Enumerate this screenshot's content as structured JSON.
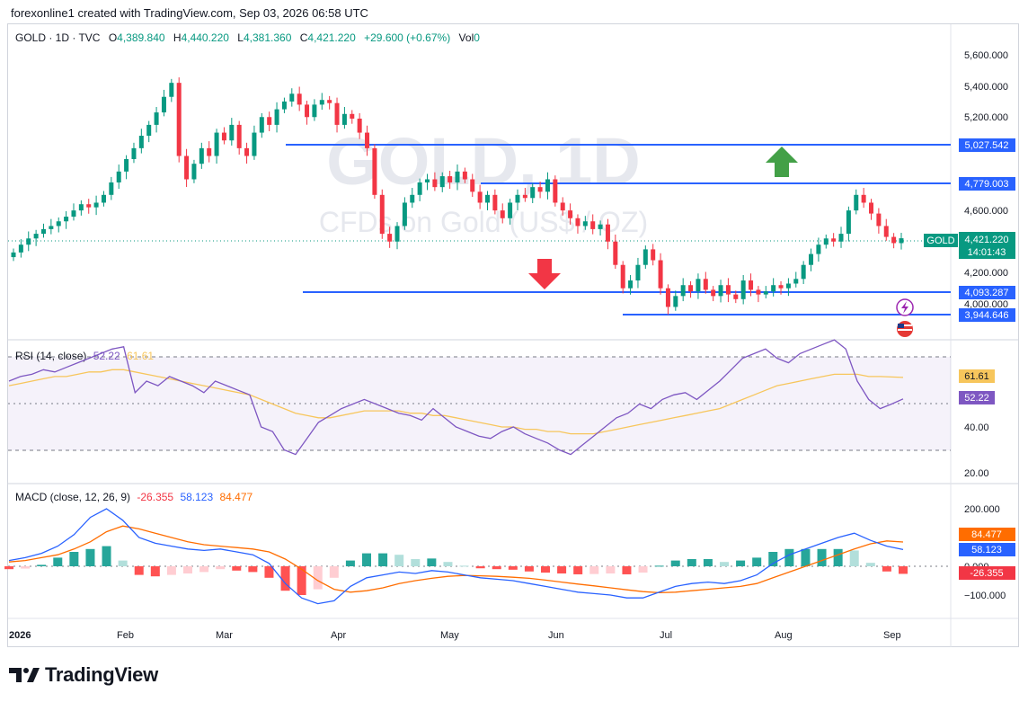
{
  "header": {
    "attribution": "forexonline1 created with TradingView.com, Sep 03, 2026 06:58 UTC"
  },
  "footer": {
    "brand": "TradingView"
  },
  "legend": {
    "symbol": "GOLD · 1D · TVC",
    "o_label": "O",
    "o": "4,389.840",
    "h_label": "H",
    "h": "4,440.220",
    "l_label": "L",
    "l": "4,381.360",
    "c_label": "C",
    "c": "4,421.220",
    "change": "+29.600 (+0.67%)",
    "vol_label": "Vol",
    "vol": "0"
  },
  "watermark": {
    "line1": "GOLD, 1D",
    "line2": "CFDs on Gold (US$ / OZ)"
  },
  "price_axis": {
    "ticks": [
      "5,600.000",
      "5,400.000",
      "5,200.000",
      "4,600.000",
      "4,200.000",
      "4,000.000"
    ],
    "symbol_tag": "GOLD",
    "last_price": "4,421.220",
    "countdown": "14:01:43"
  },
  "levels": [
    {
      "label": "5,027.542",
      "value": 5027.542
    },
    {
      "label": "4,779.003",
      "value": 4779.003
    },
    {
      "label": "4,093.287",
      "value": 4093.287
    },
    {
      "label": "3,944.646",
      "value": 3944.646
    }
  ],
  "rsi": {
    "title": "RSI (14, close)",
    "rsi_value": "52.22",
    "ma_value": "61.61",
    "ticks": [
      "40.00",
      "20.00"
    ]
  },
  "macd": {
    "title": "MACD (close, 12, 26, 9)",
    "hist_value": "-26.355",
    "macd_value": "58.123",
    "signal_value": "84.477",
    "ticks": [
      "200.000",
      "0.000",
      "−100.000"
    ]
  },
  "time_axis": [
    "2026",
    "Feb",
    "Mar",
    "Apr",
    "May",
    "Jun",
    "Jul",
    "Aug",
    "Sep"
  ],
  "colors": {
    "up": "#089981",
    "down": "#f23645",
    "level": "#2962ff",
    "rsi": "#7e57c2",
    "rsi_ma": "#f7c65c",
    "macd": "#2962ff",
    "signal": "#ff6d00"
  },
  "icons": {
    "arrow_up": "green-up-arrow-icon",
    "arrow_down": "red-down-arrow-icon",
    "flash": "lightning-icon",
    "flag": "us-flag-icon"
  },
  "chart_data": [
    {
      "type": "candlestick",
      "title": "GOLD, 1D",
      "subtitle": "CFDs on Gold (US$ / OZ)",
      "x_range": [
        "2026-01-01",
        "2026-09-03"
      ],
      "ylim": [
        3850,
        5650
      ],
      "closes": [
        4330,
        4380,
        4420,
        4450,
        4480,
        4500,
        4530,
        4560,
        4600,
        4640,
        4620,
        4650,
        4700,
        4780,
        4850,
        4930,
        5000,
        5080,
        5150,
        5230,
        5330,
        5420,
        4950,
        4800,
        4900,
        5000,
        4950,
        5100,
        5050,
        5150,
        5000,
        4950,
        5100,
        5200,
        5150,
        5250,
        5300,
        5350,
        5280,
        5200,
        5280,
        5310,
        5290,
        5150,
        5220,
        5190,
        5100,
        5000,
        4700,
        4450,
        4400,
        4500,
        4650,
        4700,
        4780,
        4800,
        4750,
        4820,
        4780,
        4850,
        4800,
        4720,
        4650,
        4700,
        4600,
        4550,
        4650,
        4700,
        4680,
        4750,
        4720,
        4800,
        4650,
        4600,
        4550,
        4500,
        4530,
        4480,
        4510,
        4400,
        4250,
        4100,
        4150,
        4250,
        4350,
        4280,
        4100,
        3980,
        4050,
        4120,
        4080,
        4160,
        4090,
        4050,
        4120,
        4060,
        4030,
        4150,
        4090,
        4060,
        4080,
        4120,
        4100,
        4130,
        4160,
        4250,
        4320,
        4380,
        4420,
        4400,
        4450,
        4600,
        4700,
        4650,
        4580,
        4500,
        4430,
        4390,
        4421.22
      ]
    },
    {
      "type": "line",
      "title": "RSI (14, close)",
      "ylim": [
        20,
        80
      ],
      "ticks": [
        40,
        20
      ],
      "series": [
        {
          "name": "RSI",
          "values": [
            60,
            62,
            63,
            65,
            64,
            66,
            68,
            70,
            72,
            74,
            75,
            55,
            60,
            58,
            62,
            60,
            58,
            55,
            60,
            58,
            56,
            54,
            40,
            38,
            30,
            28,
            35,
            42,
            45,
            48,
            50,
            52,
            50,
            48,
            46,
            45,
            43,
            48,
            44,
            40,
            38,
            36,
            35,
            38,
            40,
            37,
            35,
            33,
            30,
            28,
            32,
            36,
            40,
            44,
            46,
            50,
            48,
            52,
            54,
            55,
            52,
            56,
            60,
            65,
            70,
            72,
            74,
            70,
            68,
            72,
            74,
            76,
            78,
            74,
            60,
            52,
            48,
            50,
            52.22
          ],
          "latest": 52.22
        },
        {
          "name": "RSI-based MA",
          "values": [
            58,
            59,
            60,
            61,
            62,
            62,
            63,
            64,
            64,
            65,
            65,
            64,
            63,
            62,
            61,
            60,
            59,
            58,
            57,
            56,
            55,
            54,
            52,
            50,
            48,
            46,
            45,
            44,
            44,
            45,
            46,
            47,
            47,
            47,
            47,
            46,
            46,
            45,
            45,
            44,
            43,
            42,
            41,
            40,
            40,
            39,
            39,
            38,
            38,
            37,
            37,
            37,
            38,
            39,
            40,
            41,
            42,
            43,
            44,
            45,
            46,
            47,
            48,
            50,
            52,
            54,
            56,
            58,
            59,
            60,
            61,
            62,
            63,
            63,
            63,
            62,
            62,
            61.8,
            61.61
          ],
          "latest": 61.61
        }
      ]
    },
    {
      "type": "line",
      "title": "MACD (close, 12, 26, 9)",
      "ylim": [
        -160,
        260
      ],
      "ticks": [
        200,
        0,
        -100
      ],
      "series": [
        {
          "name": "MACD",
          "values": [
            20,
            30,
            45,
            70,
            110,
            170,
            200,
            160,
            100,
            80,
            70,
            60,
            55,
            60,
            50,
            40,
            10,
            -60,
            -110,
            -130,
            -120,
            -70,
            -40,
            -30,
            -20,
            -25,
            -15,
            -20,
            -30,
            -40,
            -45,
            -50,
            -60,
            -70,
            -80,
            -90,
            -95,
            -100,
            -110,
            -110,
            -90,
            -70,
            -60,
            -55,
            -60,
            -50,
            -30,
            10,
            40,
            60,
            80,
            100,
            115,
            90,
            70,
            58.123
          ],
          "latest": 58.123
        },
        {
          "name": "Signal",
          "values": [
            15,
            20,
            30,
            40,
            60,
            85,
            120,
            140,
            130,
            115,
            100,
            85,
            75,
            70,
            65,
            60,
            50,
            25,
            -10,
            -50,
            -80,
            -90,
            -85,
            -75,
            -60,
            -50,
            -42,
            -35,
            -32,
            -33,
            -35,
            -38,
            -42,
            -48,
            -55,
            -62,
            -68,
            -75,
            -82,
            -88,
            -92,
            -90,
            -85,
            -80,
            -75,
            -70,
            -60,
            -40,
            -20,
            0,
            20,
            40,
            60,
            78,
            88,
            84.477
          ],
          "latest": 84.477
        },
        {
          "name": "Histogram",
          "values": [
            -10,
            -8,
            5,
            30,
            50,
            60,
            70,
            20,
            -30,
            -35,
            -30,
            -25,
            -20,
            -10,
            -15,
            -20,
            -40,
            -85,
            -100,
            -80,
            -40,
            20,
            45,
            45,
            40,
            25,
            27,
            15,
            2,
            -7,
            -10,
            -12,
            -18,
            -22,
            -25,
            -28,
            -27,
            -25,
            -28,
            -22,
            2,
            20,
            25,
            25,
            15,
            20,
            30,
            50,
            60,
            60,
            60,
            60,
            55,
            12,
            -18,
            -26.355
          ],
          "latest": -26.355
        }
      ]
    }
  ]
}
